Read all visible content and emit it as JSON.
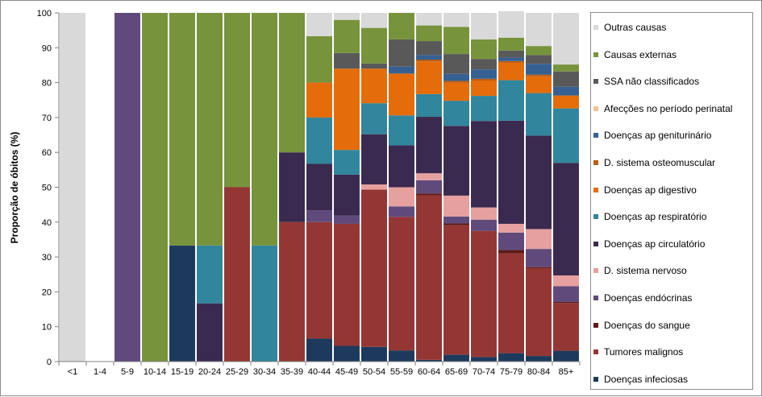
{
  "chart_data": {
    "type": "bar",
    "stacked": true,
    "ylabel": "Proporção de óbitos (%)",
    "xlabel": "",
    "ylim": [
      0,
      100
    ],
    "yticks": [
      0,
      10,
      20,
      30,
      40,
      50,
      60,
      70,
      80,
      90,
      100
    ],
    "grid": false,
    "legend_position": "right",
    "categories": [
      "<1",
      "1-4",
      "5-9",
      "10-14",
      "15-19",
      "20-24",
      "25-29",
      "30-34",
      "35-39",
      "40-44",
      "45-49",
      "50-54",
      "55-59",
      "60-64",
      "65-69",
      "70-74",
      "75-79",
      "80-84",
      "85+"
    ],
    "series": [
      {
        "name": "Doenças infeciosas",
        "color": "#1d3a5c",
        "values": [
          0,
          0,
          0,
          0,
          33.3,
          0,
          0,
          0,
          0,
          6.6,
          4.5,
          4.2,
          3.2,
          0.5,
          2.0,
          1.3,
          2.4,
          1.6,
          3.1
        ]
      },
      {
        "name": "Tumores malignos",
        "color": "#943634",
        "values": [
          0,
          0,
          0,
          0,
          0,
          0,
          50,
          0,
          40,
          33.4,
          35.0,
          45.1,
          38.3,
          47.2,
          37.1,
          36.2,
          28.6,
          25.2,
          13.7
        ]
      },
      {
        "name": "Doenças do sangue",
        "color": "#5e1a17",
        "values": [
          0,
          0,
          0,
          0,
          0,
          0,
          0,
          0,
          0,
          0,
          0,
          0,
          0,
          0.5,
          0.5,
          0,
          1.0,
          0.3,
          0.3
        ]
      },
      {
        "name": "Doenças endócrinas",
        "color": "#604a7b",
        "values": [
          0,
          0,
          100,
          0,
          0,
          0,
          0,
          0,
          0,
          3.4,
          2.4,
          0,
          3.0,
          3.8,
          2.0,
          3.2,
          5.0,
          5.2,
          4.5
        ]
      },
      {
        "name": "D. sistema nervoso",
        "color": "#e6a09f",
        "values": [
          0,
          0,
          0,
          0,
          0,
          0,
          0,
          0,
          0,
          0,
          0,
          1.5,
          5.5,
          2.0,
          6.0,
          3.5,
          2.5,
          5.7,
          3.1
        ]
      },
      {
        "name": "Doenças ap circulatório",
        "color": "#3b2a4f",
        "values": [
          0,
          0,
          0,
          0,
          0,
          16.7,
          0,
          0,
          20,
          13.3,
          11.7,
          14.4,
          12.0,
          16.2,
          20.0,
          24.8,
          29.6,
          26.8,
          32.3
        ]
      },
      {
        "name": "Doenças ap respiratório",
        "color": "#31859c",
        "values": [
          0,
          0,
          0,
          0,
          0,
          16.6,
          0,
          33.3,
          0,
          13.3,
          7.1,
          8.9,
          8.6,
          6.5,
          7.2,
          7.2,
          11.6,
          12.2,
          15.6
        ]
      },
      {
        "name": "Doenças ap digestivo",
        "color": "#e46c0a",
        "values": [
          0,
          0,
          0,
          0,
          0,
          0,
          0,
          0,
          0,
          10.0,
          23.3,
          9.9,
          12.0,
          9.4,
          5.2,
          4.4,
          5.0,
          4.8,
          3.7
        ]
      },
      {
        "name": "D. sistema osteomuscular",
        "color": "#b85c14",
        "values": [
          0,
          0,
          0,
          0,
          0,
          0,
          0,
          0,
          0,
          0,
          0,
          0,
          0,
          0.5,
          0.5,
          0.5,
          0.5,
          0.5,
          0
        ]
      },
      {
        "name": "Doenças ap geniturinário",
        "color": "#366092",
        "values": [
          0,
          0,
          0,
          0,
          0,
          0,
          0,
          0,
          0,
          0,
          0,
          0,
          2.0,
          1.3,
          2.0,
          2.7,
          1.0,
          3.1,
          2.5
        ]
      },
      {
        "name": "Afecções no período perinatal",
        "color": "#fac090",
        "values": [
          0,
          0,
          0,
          0,
          0,
          0,
          0,
          0,
          0,
          0,
          0,
          0,
          0,
          0,
          0,
          0,
          0,
          0,
          0
        ]
      },
      {
        "name": "SSA não classificados",
        "color": "#595959",
        "values": [
          0,
          0,
          0,
          0,
          0,
          0,
          0,
          0,
          0,
          0,
          4.5,
          1.5,
          7.8,
          4.0,
          5.7,
          3.0,
          2.0,
          2.5,
          4.4
        ]
      },
      {
        "name": "Causas externas",
        "color": "#77933c",
        "values": [
          0,
          0,
          0,
          100,
          66.7,
          66.7,
          50,
          66.7,
          40,
          13.3,
          9.5,
          10.2,
          7.6,
          4.5,
          7.8,
          5.6,
          3.7,
          2.6,
          2.0
        ]
      },
      {
        "name": "Outras causas",
        "color": "#d9d9d9",
        "values": [
          100,
          0,
          0,
          0,
          0,
          0,
          0,
          0,
          0,
          6.7,
          2.0,
          4.3,
          0,
          3.6,
          4.0,
          7.6,
          7.6,
          9.5,
          14.8
        ]
      }
    ]
  }
}
